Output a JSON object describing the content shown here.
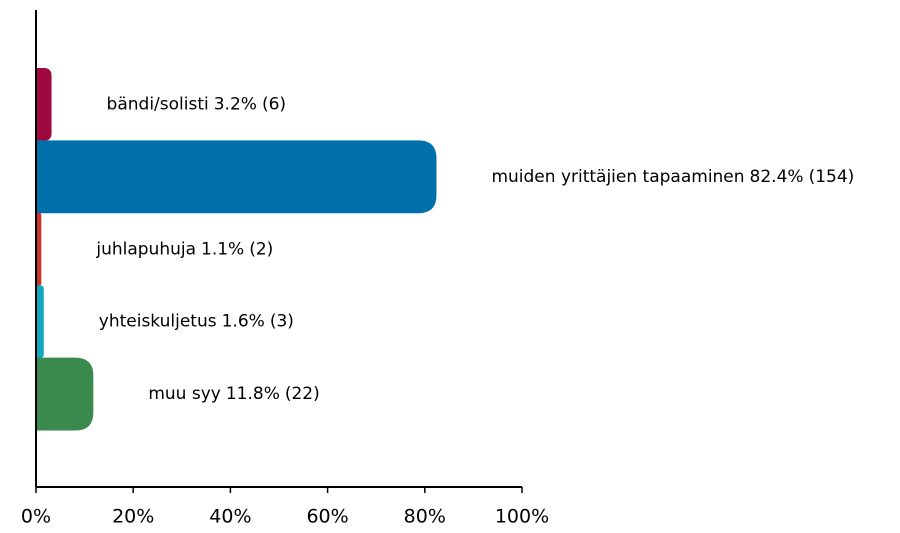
{
  "chart_data": {
    "type": "barh",
    "categories": [
      "bändi/solisti",
      "muiden yrittäjien tapaaminen",
      "juhlapuhuja",
      "yhteiskuljetus",
      "muu syy"
    ],
    "values": [
      3.2,
      82.4,
      1.1,
      1.6,
      11.8
    ],
    "value_labels": [
      "3.2%",
      "82.4%",
      "1.1%",
      "1.6%",
      "11.8%"
    ],
    "count_labels": [
      "(6)",
      "(154)",
      "(2)",
      "(3)",
      "(22)"
    ],
    "colors": [
      "#9e0a3f",
      "#0070aa",
      "#c9352a",
      "#12a8bd",
      "#3a8a4e"
    ],
    "xlim": [
      0,
      100
    ],
    "xticks": [
      {
        "value": 0,
        "label": "0%"
      },
      {
        "value": 20,
        "label": "20%"
      },
      {
        "value": 40,
        "label": "40%"
      },
      {
        "value": 60,
        "label": "60%"
      },
      {
        "value": 80,
        "label": "80%"
      },
      {
        "value": 100,
        "label": "100%"
      }
    ]
  }
}
